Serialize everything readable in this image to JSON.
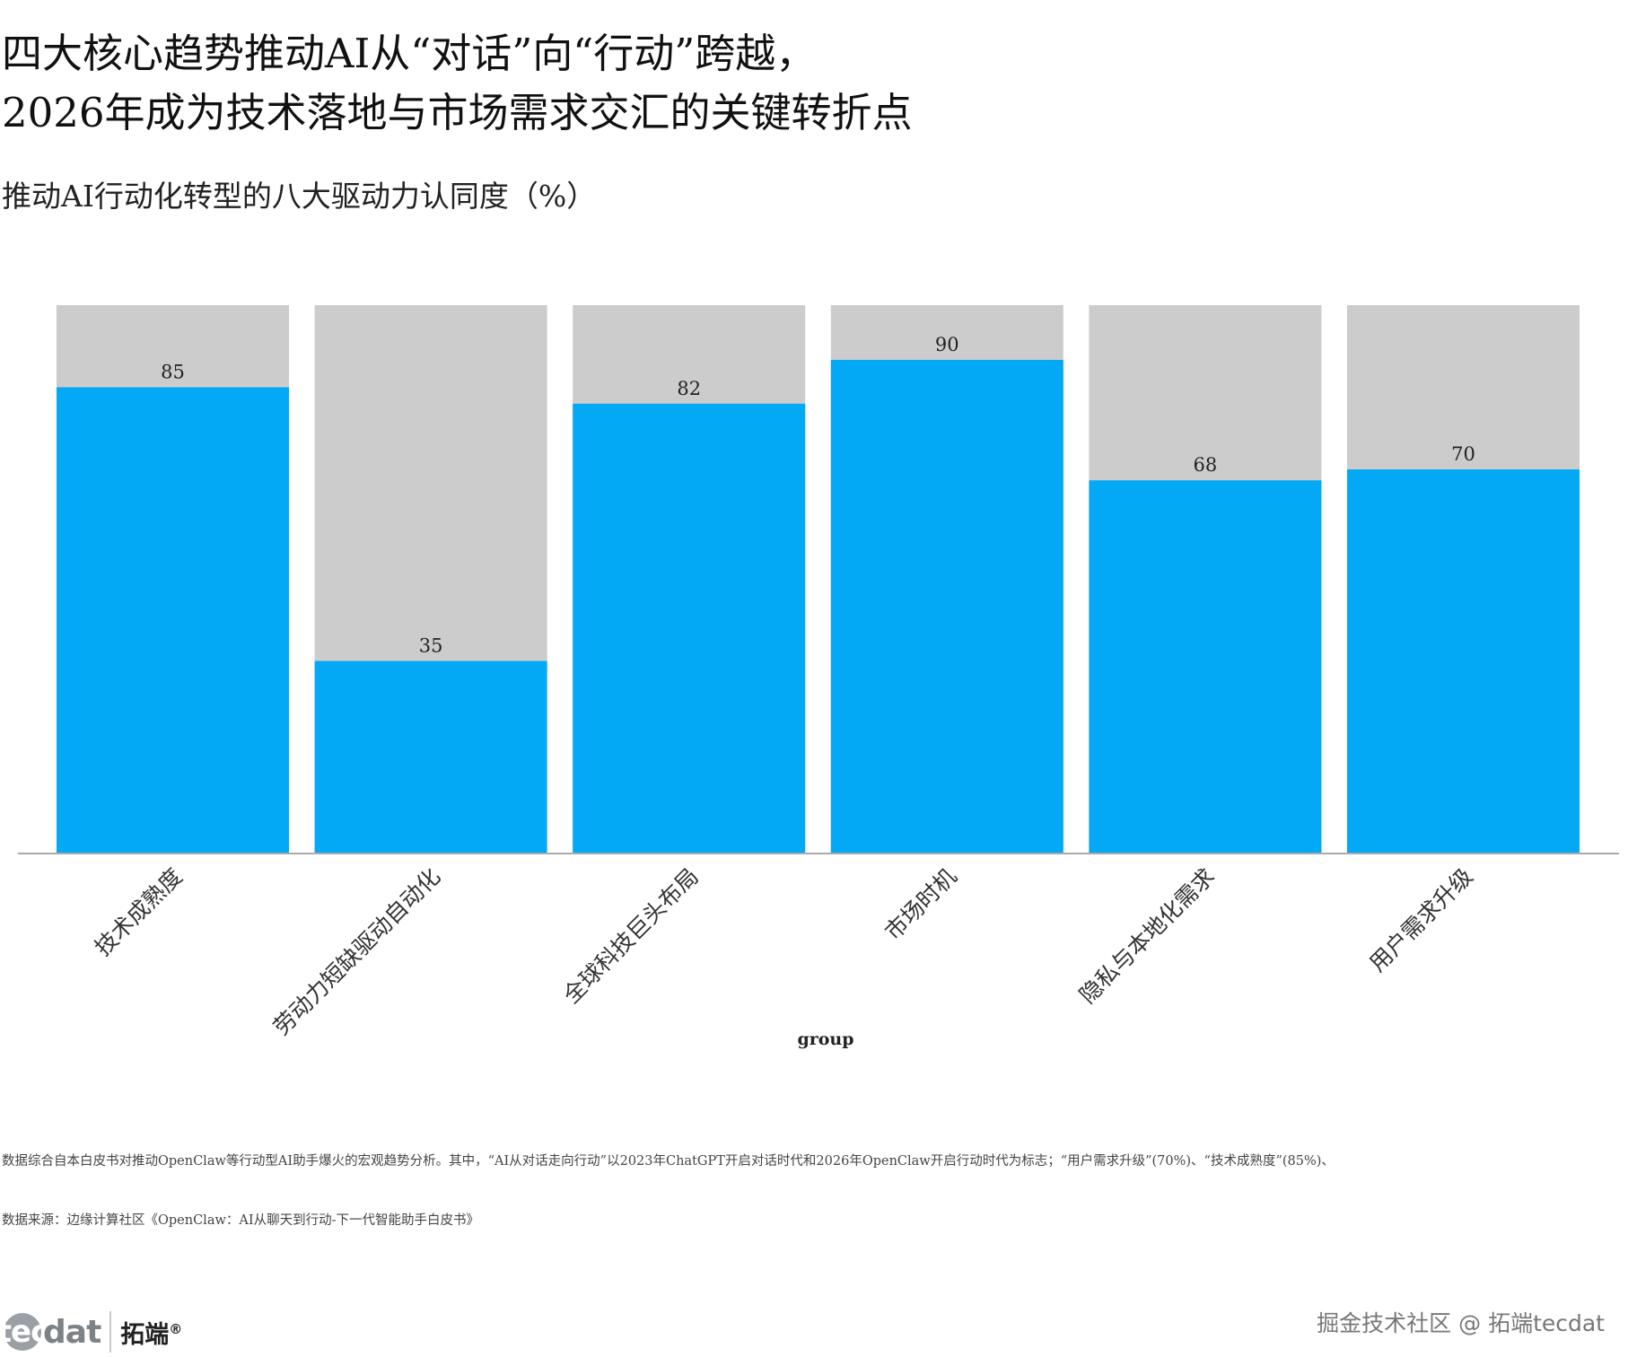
{
  "header": {
    "title_line1": "四大核心趋势推动AI从“对话”向“行动”跨越，",
    "title_line2": "2026年成为技术落地与市场需求交汇的关键转折点",
    "subtitle": "推动AI行动化转型的八大驱动力认同度（%）"
  },
  "chart_data": {
    "type": "bar",
    "stacked_to": 100,
    "categories": [
      "技术成熟度",
      "劳动力短缺驱动自动化",
      "全球科技巨头布局",
      "市场时机",
      "隐私与本地化需求",
      "用户需求升级"
    ],
    "values": [
      85,
      35,
      82,
      90,
      68,
      70
    ],
    "ylim": [
      0,
      100
    ],
    "xlabel": "group",
    "ylabel": "",
    "series_color": "#03A9F4",
    "background_color": "#CCCCCC"
  },
  "footer": {
    "description": "数据综合自本白皮书对推动OpenClaw等行动型AI助手爆火的宏观趋势分析。其中，“AI从对话走向行动”以2023年ChatGPT开启对话时代和2026年OpenClaw开启行动时代为标志；“用户需求升级”(70%)、“技术成熟度”(85%)、",
    "source": "数据来源：边缘计算社区《OpenClaw：AI从聊天到行动-下一代智能助手白皮书》"
  },
  "logo": {
    "circle_text": "tec",
    "word_text": "dat",
    "cn_text": "拓端",
    "reg_mark": "®"
  },
  "watermark": "掘金技术社区 @ 拓端tecdat"
}
